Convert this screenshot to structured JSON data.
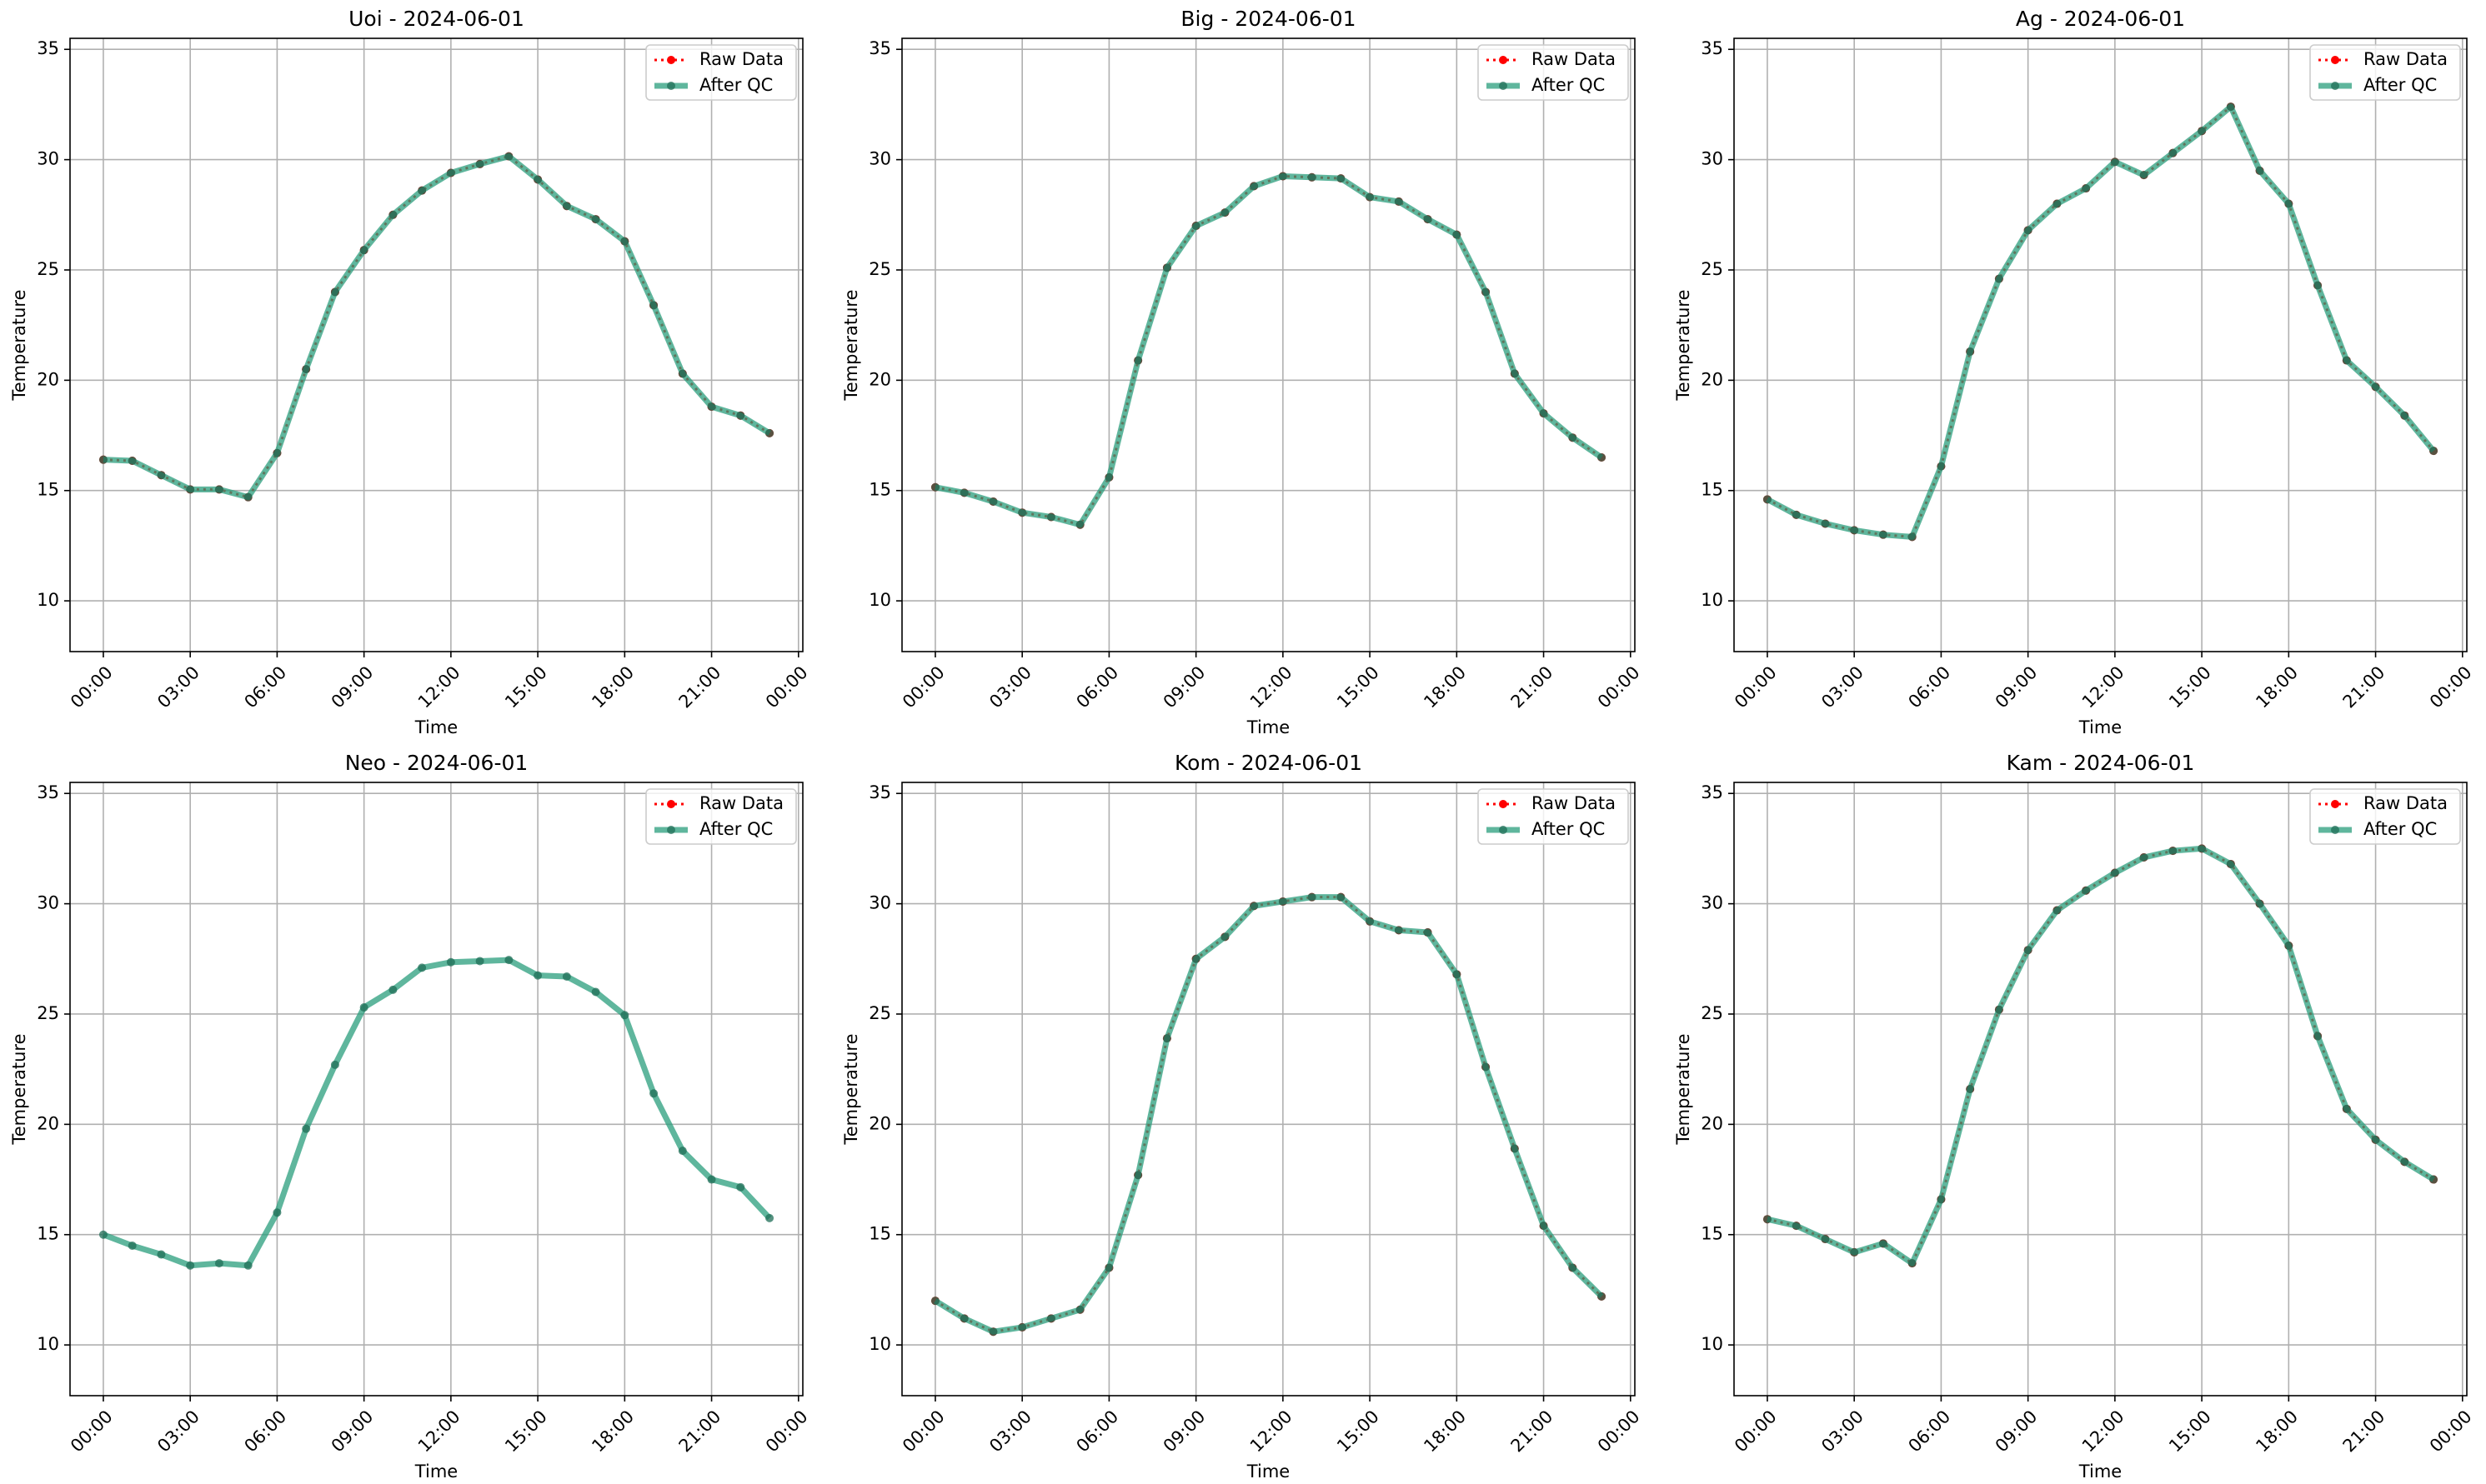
{
  "chart_data": [
    {
      "type": "line",
      "title": "Uoi - 2024-06-01",
      "x_label": "Time",
      "y_label": "Temperature",
      "x": [
        0,
        1,
        2,
        3,
        4,
        5,
        6,
        7,
        8,
        9,
        10,
        11,
        12,
        13,
        14,
        15,
        16,
        17,
        18,
        19,
        20,
        21,
        22,
        23
      ],
      "xlim": [
        -1.15,
        24.15
      ],
      "xticks": [
        {
          "value": 0,
          "label": "00:00"
        },
        {
          "value": 3,
          "label": "03:00"
        },
        {
          "value": 6,
          "label": "06:00"
        },
        {
          "value": 9,
          "label": "09:00"
        },
        {
          "value": 12,
          "label": "12:00"
        },
        {
          "value": 15,
          "label": "15:00"
        },
        {
          "value": 18,
          "label": "18:00"
        },
        {
          "value": 21,
          "label": "21:00"
        },
        {
          "value": 24,
          "label": "00:00"
        }
      ],
      "ylim": [
        7.7,
        35.5
      ],
      "yticks": [
        10,
        15,
        20,
        25,
        30,
        35
      ],
      "grid": true,
      "legend": "upper right",
      "series": [
        {
          "name": "Raw Data",
          "color": "#ff0000",
          "values": [
            16.4,
            16.35,
            15.7,
            15.05,
            15.05,
            14.7,
            16.7,
            20.5,
            24.0,
            25.9,
            27.5,
            28.6,
            29.4,
            29.8,
            30.15,
            29.1,
            27.9,
            27.3,
            26.3,
            23.4,
            20.3,
            18.8,
            18.4,
            17.6
          ]
        },
        {
          "name": "After QC",
          "color": "#2a9d7c",
          "values": [
            16.4,
            16.35,
            15.7,
            15.05,
            15.05,
            14.7,
            16.7,
            20.5,
            24.0,
            25.9,
            27.5,
            28.6,
            29.4,
            29.8,
            30.15,
            29.1,
            27.9,
            27.3,
            26.3,
            23.4,
            20.3,
            18.8,
            18.4,
            17.6
          ]
        }
      ]
    },
    {
      "type": "line",
      "title": "Big - 2024-06-01",
      "x_label": "Time",
      "y_label": "Temperature",
      "x": [
        0,
        1,
        2,
        3,
        4,
        5,
        6,
        7,
        8,
        9,
        10,
        11,
        12,
        13,
        14,
        15,
        16,
        17,
        18,
        19,
        20,
        21,
        22,
        23
      ],
      "xlim": [
        -1.15,
        24.15
      ],
      "xticks": [
        {
          "value": 0,
          "label": "00:00"
        },
        {
          "value": 3,
          "label": "03:00"
        },
        {
          "value": 6,
          "label": "06:00"
        },
        {
          "value": 9,
          "label": "09:00"
        },
        {
          "value": 12,
          "label": "12:00"
        },
        {
          "value": 15,
          "label": "15:00"
        },
        {
          "value": 18,
          "label": "18:00"
        },
        {
          "value": 21,
          "label": "21:00"
        },
        {
          "value": 24,
          "label": "00:00"
        }
      ],
      "ylim": [
        7.7,
        35.5
      ],
      "yticks": [
        10,
        15,
        20,
        25,
        30,
        35
      ],
      "grid": true,
      "legend": "upper right",
      "series": [
        {
          "name": "Raw Data",
          "color": "#ff0000",
          "values": [
            15.15,
            14.9,
            14.5,
            14.0,
            13.8,
            13.45,
            15.6,
            20.9,
            25.1,
            27.0,
            27.6,
            28.8,
            29.25,
            29.2,
            29.15,
            28.3,
            28.1,
            27.3,
            26.6,
            24.0,
            20.3,
            18.5,
            17.4,
            16.5
          ]
        },
        {
          "name": "After QC",
          "color": "#2a9d7c",
          "values": [
            15.15,
            14.9,
            14.5,
            14.0,
            13.8,
            13.45,
            15.6,
            20.9,
            25.1,
            27.0,
            27.6,
            28.8,
            29.25,
            29.2,
            29.15,
            28.3,
            28.1,
            27.3,
            26.6,
            24.0,
            20.3,
            18.5,
            17.4,
            16.5
          ]
        }
      ]
    },
    {
      "type": "line",
      "title": "Ag - 2024-06-01",
      "x_label": "Time",
      "y_label": "Temperature",
      "x": [
        0,
        1,
        2,
        3,
        4,
        5,
        6,
        7,
        8,
        9,
        10,
        11,
        12,
        13,
        14,
        15,
        16,
        17,
        18,
        19,
        20,
        21,
        22,
        23
      ],
      "xlim": [
        -1.15,
        24.15
      ],
      "xticks": [
        {
          "value": 0,
          "label": "00:00"
        },
        {
          "value": 3,
          "label": "03:00"
        },
        {
          "value": 6,
          "label": "06:00"
        },
        {
          "value": 9,
          "label": "09:00"
        },
        {
          "value": 12,
          "label": "12:00"
        },
        {
          "value": 15,
          "label": "15:00"
        },
        {
          "value": 18,
          "label": "18:00"
        },
        {
          "value": 21,
          "label": "21:00"
        },
        {
          "value": 24,
          "label": "00:00"
        }
      ],
      "ylim": [
        7.7,
        35.5
      ],
      "yticks": [
        10,
        15,
        20,
        25,
        30,
        35
      ],
      "grid": true,
      "legend": "upper right",
      "series": [
        {
          "name": "Raw Data",
          "color": "#ff0000",
          "values": [
            14.6,
            13.9,
            13.5,
            13.2,
            13.0,
            12.9,
            16.1,
            21.3,
            24.6,
            26.8,
            28.0,
            28.7,
            29.9,
            29.3,
            30.3,
            31.3,
            32.4,
            29.5,
            28.0,
            24.3,
            20.9,
            19.7,
            18.4,
            16.8
          ]
        },
        {
          "name": "After QC",
          "color": "#2a9d7c",
          "values": [
            14.6,
            13.9,
            13.5,
            13.2,
            13.0,
            12.9,
            16.1,
            21.3,
            24.6,
            26.8,
            28.0,
            28.7,
            29.9,
            29.3,
            30.3,
            31.3,
            32.4,
            29.5,
            28.0,
            24.3,
            20.9,
            19.7,
            18.4,
            16.8
          ]
        }
      ]
    },
    {
      "type": "line",
      "title": "Neo - 2024-06-01",
      "x_label": "Time",
      "y_label": "Temperature",
      "x": [
        0,
        1,
        2,
        3,
        4,
        5,
        6,
        7,
        8,
        9,
        10,
        11,
        12,
        13,
        14,
        15,
        16,
        17,
        18,
        19,
        20,
        21,
        22,
        23
      ],
      "xlim": [
        -1.15,
        24.15
      ],
      "xticks": [
        {
          "value": 0,
          "label": "00:00"
        },
        {
          "value": 3,
          "label": "03:00"
        },
        {
          "value": 6,
          "label": "06:00"
        },
        {
          "value": 9,
          "label": "09:00"
        },
        {
          "value": 12,
          "label": "12:00"
        },
        {
          "value": 15,
          "label": "15:00"
        },
        {
          "value": 18,
          "label": "18:00"
        },
        {
          "value": 21,
          "label": "21:00"
        },
        {
          "value": 24,
          "label": "00:00"
        }
      ],
      "ylim": [
        7.7,
        35.5
      ],
      "yticks": [
        10,
        15,
        20,
        25,
        30,
        35
      ],
      "grid": true,
      "legend": "upper right",
      "series": [
        {
          "name": "Raw Data",
          "color": "#ff0000",
          "values": [
            null,
            null,
            null,
            null,
            null,
            null,
            null,
            null,
            null,
            null,
            null,
            null,
            null,
            null,
            null,
            null,
            null,
            null,
            null,
            null,
            null,
            null,
            null,
            null
          ]
        },
        {
          "name": "After QC",
          "color": "#2a9d7c",
          "values": [
            15.0,
            14.5,
            14.1,
            13.6,
            13.7,
            13.6,
            16.0,
            19.8,
            22.7,
            25.3,
            26.1,
            27.1,
            27.35,
            27.4,
            27.45,
            26.75,
            26.7,
            26.0,
            24.95,
            21.4,
            18.8,
            17.5,
            17.15,
            15.75
          ]
        }
      ]
    },
    {
      "type": "line",
      "title": "Kom - 2024-06-01",
      "x_label": "Time",
      "y_label": "Temperature",
      "x": [
        0,
        1,
        2,
        3,
        4,
        5,
        6,
        7,
        8,
        9,
        10,
        11,
        12,
        13,
        14,
        15,
        16,
        17,
        18,
        19,
        20,
        21,
        22,
        23
      ],
      "xlim": [
        -1.15,
        24.15
      ],
      "xticks": [
        {
          "value": 0,
          "label": "00:00"
        },
        {
          "value": 3,
          "label": "03:00"
        },
        {
          "value": 6,
          "label": "06:00"
        },
        {
          "value": 9,
          "label": "09:00"
        },
        {
          "value": 12,
          "label": "12:00"
        },
        {
          "value": 15,
          "label": "15:00"
        },
        {
          "value": 18,
          "label": "18:00"
        },
        {
          "value": 21,
          "label": "21:00"
        },
        {
          "value": 24,
          "label": "00:00"
        }
      ],
      "ylim": [
        7.7,
        35.5
      ],
      "yticks": [
        10,
        15,
        20,
        25,
        30,
        35
      ],
      "grid": true,
      "legend": "upper right",
      "series": [
        {
          "name": "Raw Data",
          "color": "#ff0000",
          "values": [
            12.0,
            11.2,
            10.6,
            10.8,
            11.2,
            11.6,
            13.5,
            17.7,
            23.9,
            27.5,
            28.5,
            29.9,
            30.1,
            30.3,
            30.3,
            29.2,
            28.8,
            28.7,
            26.8,
            22.6,
            18.9,
            15.4,
            13.5,
            12.2
          ]
        },
        {
          "name": "After QC",
          "color": "#2a9d7c",
          "values": [
            12.0,
            11.2,
            10.6,
            10.8,
            11.2,
            11.6,
            13.5,
            17.7,
            23.9,
            27.5,
            28.5,
            29.9,
            30.1,
            30.3,
            30.3,
            29.2,
            28.8,
            28.7,
            26.8,
            22.6,
            18.9,
            15.4,
            13.5,
            12.2
          ]
        }
      ]
    },
    {
      "type": "line",
      "title": "Kam - 2024-06-01",
      "x_label": "Time",
      "y_label": "Temperature",
      "x": [
        0,
        1,
        2,
        3,
        4,
        5,
        6,
        7,
        8,
        9,
        10,
        11,
        12,
        13,
        14,
        15,
        16,
        17,
        18,
        19,
        20,
        21,
        22,
        23
      ],
      "xlim": [
        -1.15,
        24.15
      ],
      "xticks": [
        {
          "value": 0,
          "label": "00:00"
        },
        {
          "value": 3,
          "label": "03:00"
        },
        {
          "value": 6,
          "label": "06:00"
        },
        {
          "value": 9,
          "label": "09:00"
        },
        {
          "value": 12,
          "label": "12:00"
        },
        {
          "value": 15,
          "label": "15:00"
        },
        {
          "value": 18,
          "label": "18:00"
        },
        {
          "value": 21,
          "label": "21:00"
        },
        {
          "value": 24,
          "label": "00:00"
        }
      ],
      "ylim": [
        7.7,
        35.5
      ],
      "yticks": [
        10,
        15,
        20,
        25,
        30,
        35
      ],
      "grid": true,
      "legend": "upper right",
      "series": [
        {
          "name": "Raw Data",
          "color": "#ff0000",
          "values": [
            15.7,
            15.4,
            14.8,
            14.2,
            14.6,
            13.7,
            16.6,
            21.6,
            25.2,
            27.9,
            29.7,
            30.6,
            31.4,
            32.1,
            32.4,
            32.5,
            31.8,
            30.0,
            28.1,
            24.0,
            20.7,
            19.3,
            18.3,
            17.5
          ]
        },
        {
          "name": "After QC",
          "color": "#2a9d7c",
          "values": [
            15.7,
            15.4,
            14.8,
            14.2,
            14.6,
            13.7,
            16.6,
            21.6,
            25.2,
            27.9,
            29.7,
            30.6,
            31.4,
            32.1,
            32.4,
            32.5,
            31.8,
            30.0,
            28.1,
            24.0,
            20.7,
            19.3,
            18.3,
            17.5
          ]
        }
      ]
    }
  ]
}
